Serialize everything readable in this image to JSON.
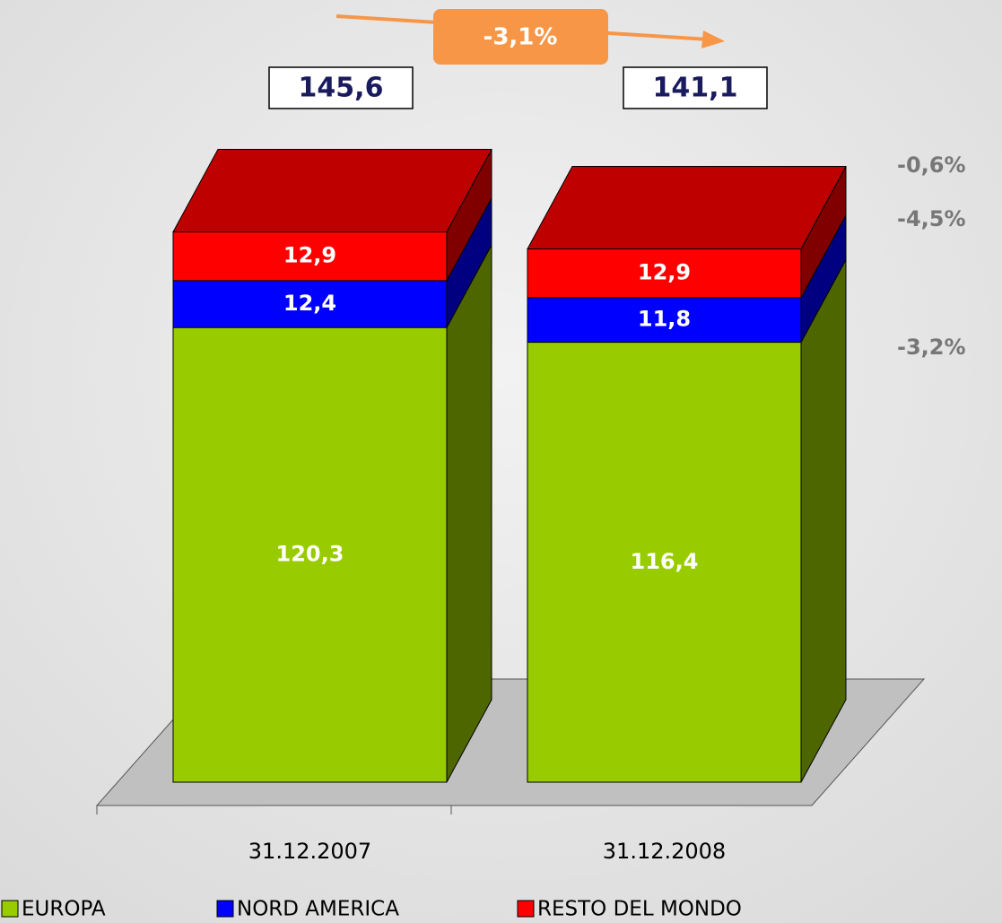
{
  "chart_data": {
    "type": "bar3d_stacked",
    "categories": [
      "31.12.2007",
      "31.12.2008"
    ],
    "series": [
      {
        "name": "EUROPA",
        "color": "#99cc00",
        "values": [
          120.3,
          116.4
        ],
        "value_labels": [
          "120,3",
          "116,4"
        ]
      },
      {
        "name": "NORD AMERICA",
        "color": "#0000ff",
        "values": [
          12.4,
          11.8
        ],
        "value_labels": [
          "12,4",
          "11,8"
        ]
      },
      {
        "name": "RESTO DEL MONDO",
        "color": "#ff0000",
        "values": [
          12.9,
          12.9
        ],
        "value_labels": [
          "12,9",
          "12,9"
        ]
      }
    ],
    "totals": [
      145.6,
      141.1
    ],
    "total_labels": [
      "145,6",
      "141,1"
    ],
    "change_label": "-3,1%",
    "series_changes": [
      "-0,6%",
      "-4,5%",
      "-3,2%"
    ],
    "ylim": [
      0,
      150
    ],
    "legend": "bottom"
  }
}
